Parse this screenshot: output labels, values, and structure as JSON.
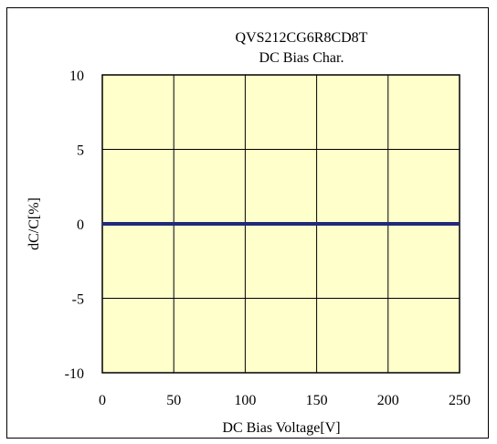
{
  "chart_data": {
    "type": "line",
    "title": "QVS212CG6R8CD8T",
    "subtitle": "DC Bias Char.",
    "xlabel": "DC Bias Voltage[V]",
    "ylabel": "dC/C[%]",
    "xlim": [
      0,
      250
    ],
    "ylim": [
      -10,
      10
    ],
    "xticks": [
      0,
      50,
      100,
      150,
      200,
      250
    ],
    "yticks": [
      10,
      5,
      0,
      -5,
      -10
    ],
    "xtick_labels": [
      "0",
      "50",
      "100",
      "150",
      "200",
      "250"
    ],
    "ytick_labels": [
      "10",
      "5",
      "0",
      "-5",
      "-10"
    ],
    "grid": true,
    "plot_background": "#FFFFCC",
    "series": [
      {
        "color": "#1F2A7A",
        "x": [
          0,
          50,
          100,
          150,
          200,
          250
        ],
        "y": [
          0,
          0,
          0,
          0,
          0,
          0
        ]
      }
    ]
  }
}
